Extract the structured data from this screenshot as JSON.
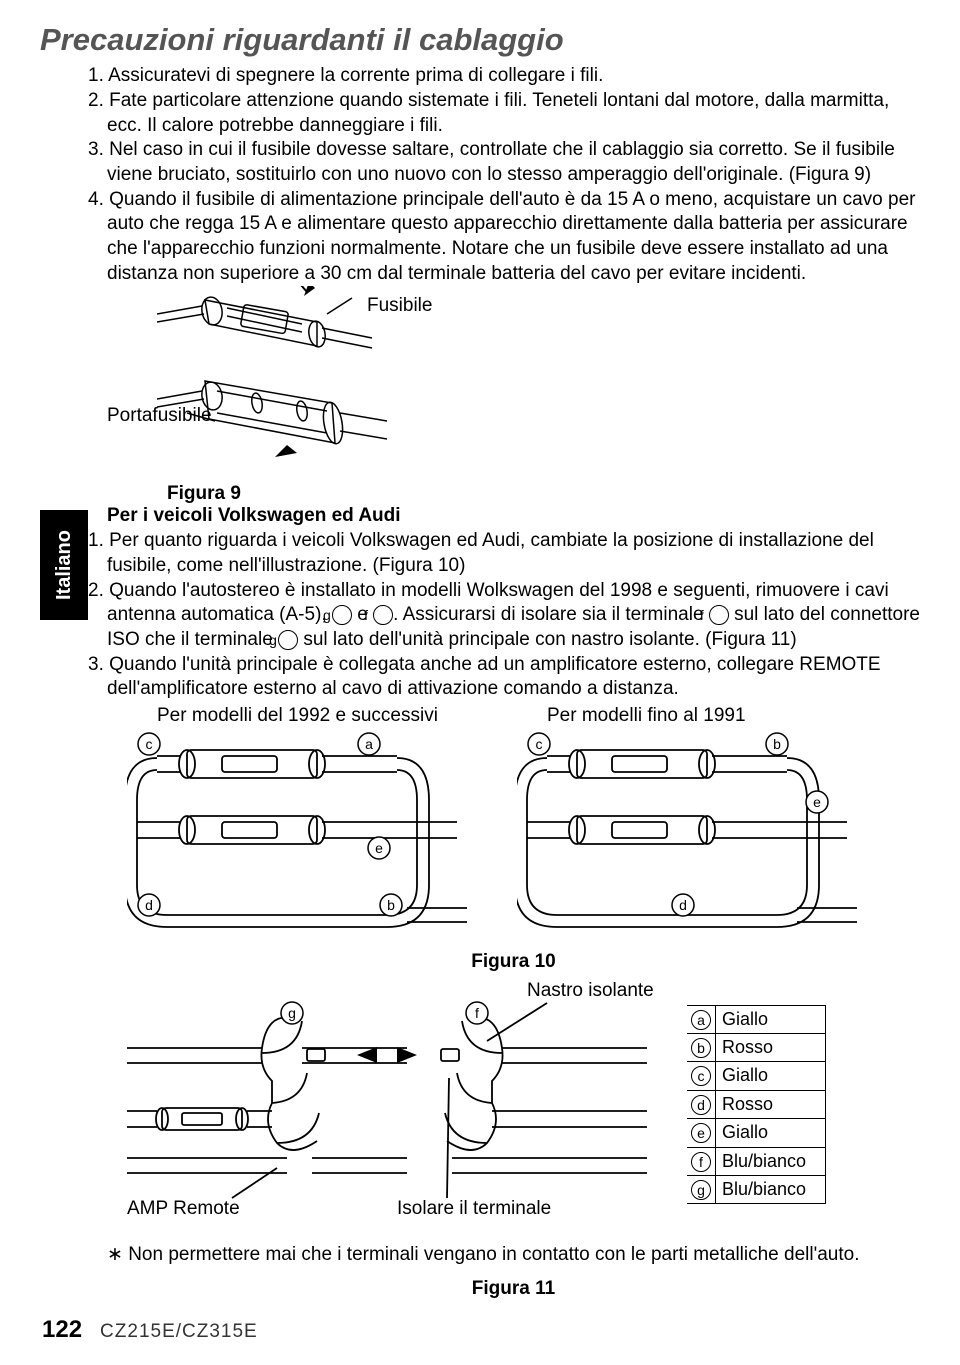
{
  "title": "Precauzioni riguardanti il cablaggio",
  "sideTab": "Italiano",
  "list1": {
    "i1": "1. Assicuratevi di spegnere la corrente prima di collegare i fili.",
    "i2": "2. Fate particolare attenzione quando sistemate i fili. Teneteli lontani dal motore, dalla marmitta, ecc. Il calore potrebbe danneggiare i fili.",
    "i3": "3. Nel caso in cui il fusibile dovesse saltare, controllate che il cablaggio sia corretto. Se il fusibile viene bruciato, sostituirlo con uno nuovo con lo stesso amperaggio dell'originale. (Figura 9)",
    "i4": "4. Quando il fusibile di alimentazione principale dell'auto è da 15 A o meno, acquistare un cavo per auto che regga 15 A e alimentare questo apparecchio direttamente dalla batteria per assicurare che l'apparecchio funzioni normalmente. Notare che un fusibile deve essere installato ad una distanza non superiore a 30 cm dal terminale batteria del cavo per evitare incidenti."
  },
  "fig9": {
    "fusibile": "Fusibile",
    "portafusibile": "Portafusibile",
    "caption": "Figura 9"
  },
  "subhead": "Per i veicoli Volkswagen ed Audi",
  "list2": {
    "i1": "1. Per quanto riguarda i veicoli Volkswagen ed Audi, cambiate la posizione di installazione del fusibile, come nell'illustrazione. (Figura 10)",
    "i2a": "2. Quando l'autostereo è installato in modelli Wolkswagen del 1998 e seguenti, rimuovere i cavi antenna automatica (A-5), ",
    "i2g": "g",
    "i2b": " e ",
    "i2f": "f",
    "i2c": ". Assicurarsi di isolare sia il terminale ",
    "i2f2": "f",
    "i2d": " sul lato del connettore ISO che il terminale ",
    "i2g2": "g",
    "i2e": " sul lato dell'unità principale con nastro isolante. (Figura 11)",
    "i3": "3. Quando l'unità principale è collegata anche ad un amplificatore esterno, collegare REMOTE dell'amplificatore esterno al cavo di attivazione comando a distanza."
  },
  "fig10": {
    "leftLabel": "Per modelli del 1992 e successivi",
    "rightLabel": "Per modelli fino al 1991",
    "caption": "Figura 10",
    "letters": {
      "a": "a",
      "b": "b",
      "c": "c",
      "d": "d",
      "e": "e"
    }
  },
  "fig11": {
    "nastro": "Nastro isolante",
    "amp": "AMP Remote",
    "iso": "Isolare il terminale",
    "caption": "Figura 11",
    "g": "g",
    "f": "f",
    "colorTable": [
      {
        "k": "a",
        "v": "Giallo"
      },
      {
        "k": "b",
        "v": "Rosso"
      },
      {
        "k": "c",
        "v": "Giallo"
      },
      {
        "k": "d",
        "v": "Rosso"
      },
      {
        "k": "e",
        "v": "Giallo"
      },
      {
        "k": "f",
        "v": "Blu/bianco"
      },
      {
        "k": "g",
        "v": "Blu/bianco"
      }
    ]
  },
  "note": "∗ Non permettere mai che i terminali vengano in contatto con le parti metalliche dell'auto.",
  "footer": {
    "page": "122",
    "model": "CZ215E/CZ315E"
  }
}
